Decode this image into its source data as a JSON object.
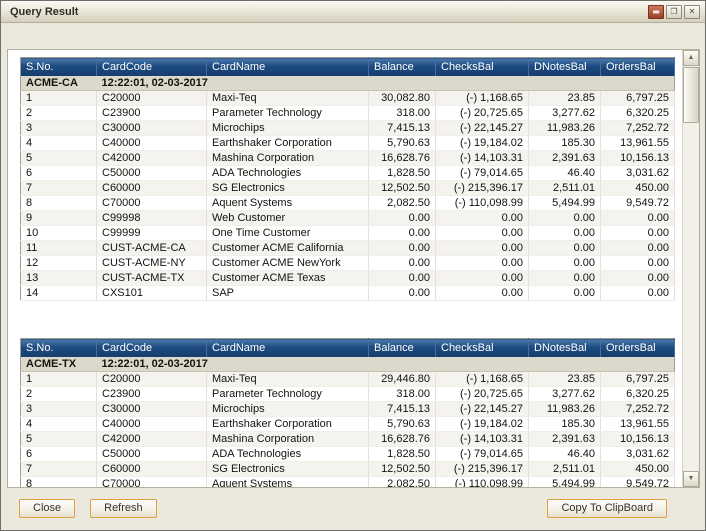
{
  "window": {
    "title": "Query Result",
    "controls": [
      {
        "id": "minimize",
        "glyph": "▬"
      },
      {
        "id": "restore",
        "glyph": "❐"
      },
      {
        "id": "close",
        "glyph": "✕"
      }
    ]
  },
  "colors": {
    "header_blue": "#1C4A80",
    "button_border_gold": "#DDA13D",
    "group_row_bg": "#DBD8CC",
    "titlebar_beige": "#E8E4D4"
  },
  "columns": [
    "S.No.",
    "CardCode",
    "CardName",
    "Balance",
    "ChecksBal",
    "DNotesBal",
    "OrdersBal"
  ],
  "column_keys": [
    "sno",
    "cardcode",
    "cardname",
    "balance",
    "checksbal",
    "dnotesbal",
    "ordersbal"
  ],
  "tables": [
    {
      "group": "ACME-CA",
      "timestamp": "12:22:01, 02-03-2017",
      "rows": [
        [
          "1",
          "C20000",
          "Maxi-Teq",
          "30,082.80",
          "(-) 1,168.65",
          "23.85",
          "6,797.25"
        ],
        [
          "2",
          "C23900",
          "Parameter Technology",
          "318.00",
          "(-) 20,725.65",
          "3,277.62",
          "6,320.25"
        ],
        [
          "3",
          "C30000",
          "Microchips",
          "7,415.13",
          "(-) 22,145.27",
          "11,983.26",
          "7,252.72"
        ],
        [
          "4",
          "C40000",
          "Earthshaker Corporation",
          "5,790.63",
          "(-) 19,184.02",
          "185.30",
          "13,961.55"
        ],
        [
          "5",
          "C42000",
          "Mashina Corporation",
          "16,628.76",
          "(-) 14,103.31",
          "2,391.63",
          "10,156.13"
        ],
        [
          "6",
          "C50000",
          "ADA Technologies",
          "1,828.50",
          "(-) 79,014.65",
          "46.40",
          "3,031.62"
        ],
        [
          "7",
          "C60000",
          "SG Electronics",
          "12,502.50",
          "(-) 215,396.17",
          "2,511.01",
          "450.00"
        ],
        [
          "8",
          "C70000",
          "Aquent Systems",
          "2,082.50",
          "(-) 110,098.99",
          "5,494.99",
          "9,549.72"
        ],
        [
          "9",
          "C99998",
          "Web Customer",
          "0.00",
          "0.00",
          "0.00",
          "0.00"
        ],
        [
          "10",
          "C99999",
          "One Time Customer",
          "0.00",
          "0.00",
          "0.00",
          "0.00"
        ],
        [
          "11",
          "CUST-ACME-CA",
          "Customer ACME California",
          "0.00",
          "0.00",
          "0.00",
          "0.00"
        ],
        [
          "12",
          "CUST-ACME-NY",
          "Customer ACME NewYork",
          "0.00",
          "0.00",
          "0.00",
          "0.00"
        ],
        [
          "13",
          "CUST-ACME-TX",
          "Customer ACME Texas",
          "0.00",
          "0.00",
          "0.00",
          "0.00"
        ],
        [
          "14",
          "CXS101",
          "SAP",
          "0.00",
          "0.00",
          "0.00",
          "0.00"
        ]
      ]
    },
    {
      "group": "ACME-TX",
      "timestamp": "12:22:01, 02-03-2017",
      "rows": [
        [
          "1",
          "C20000",
          "Maxi-Teq",
          "29,446.80",
          "(-) 1,168.65",
          "23.85",
          "6,797.25"
        ],
        [
          "2",
          "C23900",
          "Parameter Technology",
          "318.00",
          "(-) 20,725.65",
          "3,277.62",
          "6,320.25"
        ],
        [
          "3",
          "C30000",
          "Microchips",
          "7,415.13",
          "(-) 22,145.27",
          "11,983.26",
          "7,252.72"
        ],
        [
          "4",
          "C40000",
          "Earthshaker Corporation",
          "5,790.63",
          "(-) 19,184.02",
          "185.30",
          "13,961.55"
        ],
        [
          "5",
          "C42000",
          "Mashina Corporation",
          "16,628.76",
          "(-) 14,103.31",
          "2,391.63",
          "10,156.13"
        ],
        [
          "6",
          "C50000",
          "ADA Technologies",
          "1,828.50",
          "(-) 79,014.65",
          "46.40",
          "3,031.62"
        ],
        [
          "7",
          "C60000",
          "SG Electronics",
          "12,502.50",
          "(-) 215,396.17",
          "2,511.01",
          "450.00"
        ],
        [
          "8",
          "C70000",
          "Aquent Systems",
          "2,082.50",
          "(-) 110,098.99",
          "5,494.99",
          "9,549.72"
        ]
      ]
    }
  ],
  "scrollbar": {
    "up": "▲",
    "down": "▼"
  },
  "footer": {
    "close": "Close",
    "refresh": "Refresh",
    "copy": "Copy To ClipBoard"
  }
}
